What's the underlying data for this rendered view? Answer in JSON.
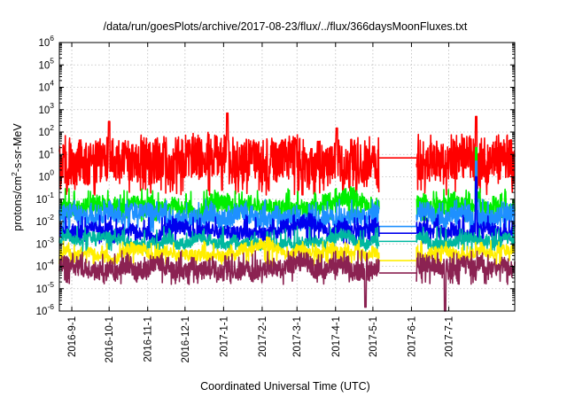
{
  "chart_data": {
    "type": "line",
    "title": "/data/run/goesPlots/archive/2017-08-23/flux/../flux/366daysMoonFluxes.txt",
    "xlabel": "Coordinated Universal Time (UTC)",
    "ylabel": {
      "base": "protons/cm",
      "sup": "2",
      "rest": "-s-sr-MeV"
    },
    "y_scale": "log",
    "ylim": [
      1e-06,
      1000000.0
    ],
    "y_ticks": [
      {
        "base": "10",
        "exp": "-6",
        "value": 1e-06
      },
      {
        "base": "10",
        "exp": "-5",
        "value": 1e-05
      },
      {
        "base": "10",
        "exp": "-4",
        "value": 0.0001
      },
      {
        "base": "10",
        "exp": "-3",
        "value": 0.001
      },
      {
        "base": "10",
        "exp": "-2",
        "value": 0.01
      },
      {
        "base": "10",
        "exp": "-1",
        "value": 0.1
      },
      {
        "base": "10",
        "exp": "0",
        "value": 1
      },
      {
        "base": "10",
        "exp": "1",
        "value": 10
      },
      {
        "base": "10",
        "exp": "2",
        "value": 100
      },
      {
        "base": "10",
        "exp": "3",
        "value": 1000
      },
      {
        "base": "10",
        "exp": "4",
        "value": 10000
      },
      {
        "base": "10",
        "exp": "5",
        "value": 100000
      },
      {
        "base": "10",
        "exp": "6",
        "value": 1000000
      }
    ],
    "xlim": [
      "2016-08-22",
      "2017-08-23"
    ],
    "x_ticks": [
      "2016-9-1",
      "2016-10-1",
      "2016-11-1",
      "2016-12-1",
      "2017-1-1",
      "2017-2-1",
      "2017-3-1",
      "2017-4-1",
      "2017-5-1",
      "2017-6-1",
      "2017-7-1"
    ],
    "grid": true,
    "data_gap": {
      "start": "2017-05-06",
      "end": "2017-06-05"
    },
    "series": [
      {
        "color": "#ff0000",
        "typical_value": 5,
        "low": 0.3,
        "high": 40,
        "gap_value": 7,
        "spikes": [
          {
            "date": "2016-10-01",
            "value": 300
          },
          {
            "date": "2017-01-04",
            "value": 700
          },
          {
            "date": "2017-04-02",
            "value": 150
          },
          {
            "date": "2017-07-23",
            "value": 500
          }
        ]
      },
      {
        "color": "#00ee00",
        "typical_value": 0.05,
        "low": 0.02,
        "high": 0.15,
        "gap_value": null,
        "spikes": [
          {
            "date": "2017-07-23",
            "value": 20
          }
        ]
      },
      {
        "color": "#1e90ff",
        "typical_value": 0.02,
        "low": 0.006,
        "high": 0.05,
        "gap_value": 0.006,
        "spikes": [
          {
            "date": "2017-07-23",
            "value": 5
          }
        ]
      },
      {
        "color": "#0000ee",
        "typical_value": 0.004,
        "low": 0.002,
        "high": 0.01,
        "gap_value": 0.003,
        "spikes": [
          {
            "date": "2017-07-23",
            "value": 1
          }
        ]
      },
      {
        "color": "#00b8a0",
        "typical_value": 0.0015,
        "low": 0.0009,
        "high": 0.003,
        "gap_value": 0.0013,
        "spikes": []
      },
      {
        "color": "#ffee00",
        "typical_value": 0.0004,
        "low": 0.0002,
        "high": 0.0007,
        "gap_value": 0.00018,
        "spikes": []
      },
      {
        "color": "#8b2252",
        "typical_value": 0.0001,
        "low": 3e-05,
        "high": 0.00025,
        "gap_value": 5e-05,
        "spikes": [
          {
            "date": "2017-04-25",
            "value": 1.5e-06
          },
          {
            "date": "2017-06-28",
            "value": 1e-06
          }
        ]
      }
    ]
  }
}
